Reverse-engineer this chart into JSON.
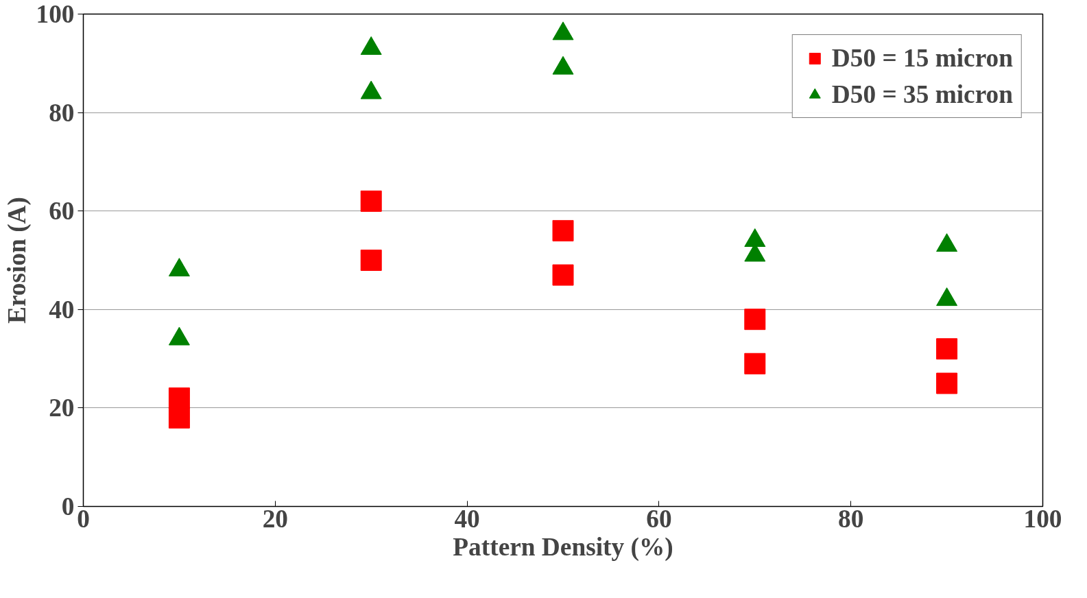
{
  "chart_data": {
    "type": "scatter",
    "xlabel": "Pattern Density (%)",
    "ylabel": "Erosion (A)",
    "xlim": [
      0,
      100
    ],
    "ylim": [
      0,
      100
    ],
    "xticks": [
      0,
      20,
      40,
      60,
      80,
      100
    ],
    "yticks": [
      0,
      20,
      40,
      60,
      80,
      100
    ],
    "grid": "y",
    "legend": "top right",
    "series": [
      {
        "name": "D50 = 15 micron",
        "color": "#ff0000",
        "marker": "square",
        "x": [
          10,
          10,
          30,
          30,
          50,
          50,
          70,
          70,
          90,
          90
        ],
        "values": [
          22,
          18,
          62,
          50,
          56,
          47,
          38,
          29,
          32,
          25
        ]
      },
      {
        "name": "D50 = 35 micron",
        "color": "#008000",
        "marker": "triangle",
        "x": [
          10,
          10,
          30,
          30,
          50,
          50,
          70,
          70,
          90,
          90
        ],
        "values": [
          48,
          34,
          93,
          84,
          96,
          89,
          54,
          51,
          53,
          42
        ]
      }
    ]
  }
}
